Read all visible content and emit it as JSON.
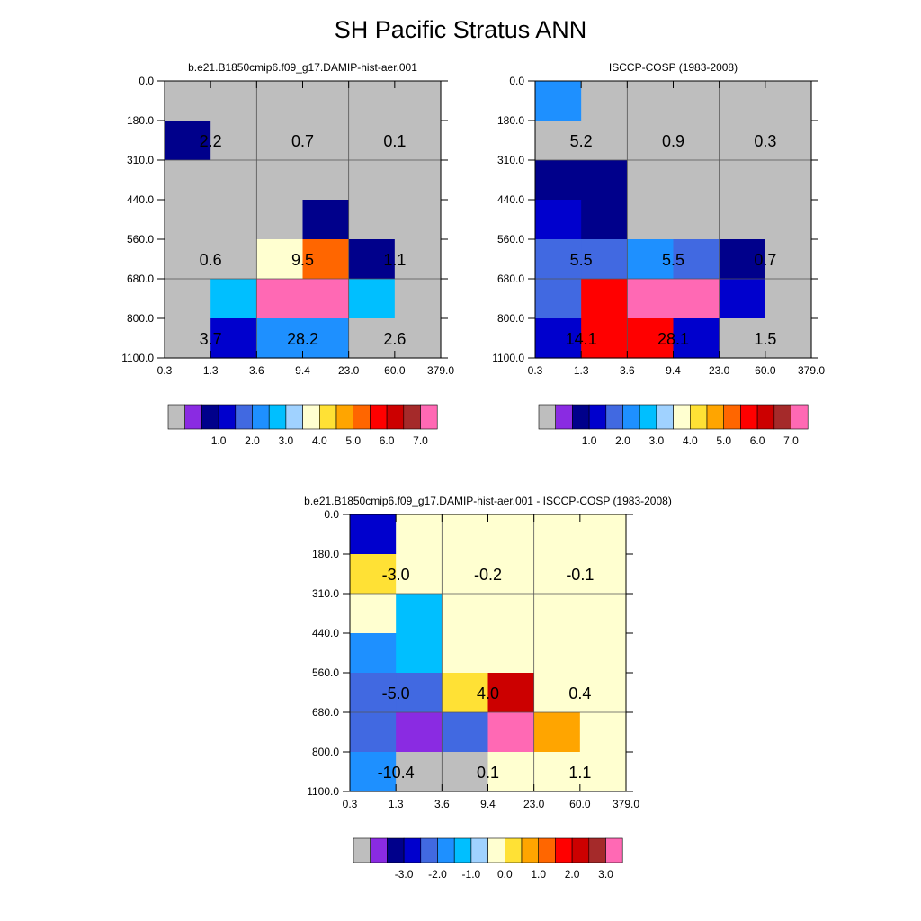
{
  "title": "SH Pacific Stratus ANN",
  "chart_data": [
    {
      "type": "heatmap",
      "title": "b.e21.B1850cmip6.f09_g17.DAMIP-hist-aer.001",
      "x_ticks": [
        "0.3",
        "1.3",
        "3.6",
        "9.4",
        "23.0",
        "60.0",
        "379.0"
      ],
      "y_ticks": [
        "0.0",
        "180.0",
        "310.0",
        "440.0",
        "560.0",
        "680.0",
        "800.0",
        "1100.0"
      ],
      "grid": true,
      "cell_values": [
        [
          0.0,
          0.0,
          0.0,
          0.0,
          0.0,
          0.0
        ],
        [
          0.5,
          0.0,
          0.0,
          0.0,
          0.0,
          0.0
        ],
        [
          0.0,
          0.0,
          0.0,
          0.0,
          0.0,
          0.0
        ],
        [
          0.0,
          0.0,
          0.0,
          0.8,
          0.0,
          0.0
        ],
        [
          0.0,
          0.0,
          3.7,
          5.2,
          0.9,
          0.0
        ],
        [
          0.0,
          2.6,
          7.8,
          7.8,
          2.6,
          0.0
        ],
        [
          0.0,
          1.3,
          2.0,
          2.0,
          0.0,
          0.0
        ]
      ],
      "annotations": [
        {
          "row": 1,
          "col": 0,
          "text": "2.2"
        },
        {
          "row": 1,
          "col": 2,
          "text": "0.7"
        },
        {
          "row": 1,
          "col": 4,
          "text": "0.1"
        },
        {
          "row": 4,
          "col": 0,
          "text": "0.6"
        },
        {
          "row": 4,
          "col": 2,
          "text": "9.5"
        },
        {
          "row": 4,
          "col": 4,
          "text": "1.1"
        },
        {
          "row": 6,
          "col": 0,
          "text": "3.7"
        },
        {
          "row": 6,
          "col": 2,
          "text": "28.2"
        },
        {
          "row": 6,
          "col": 4,
          "text": "2.6"
        }
      ],
      "colorbar": {
        "colors": [
          "#bebebe",
          "#8a2be2",
          "#00008b",
          "#0000cd",
          "#4169e1",
          "#1e90ff",
          "#00bfff",
          "#a0d2ff",
          "#ffffd0",
          "#ffe135",
          "#ffa500",
          "#ff6600",
          "#ff0000",
          "#cc0000",
          "#a52a2a",
          "#ff69b4"
        ],
        "levels": [
          0.2,
          0.5,
          1.0,
          1.5,
          2.0,
          2.5,
          3.0,
          3.5,
          4.0,
          4.5,
          5.0,
          5.5,
          6.0,
          6.5,
          7.0
        ],
        "tick_labels": [
          "1.0",
          "2.0",
          "3.0",
          "4.0",
          "5.0",
          "6.0",
          "7.0"
        ]
      }
    },
    {
      "type": "heatmap",
      "title": "ISCCP-COSP (1983-2008)",
      "x_ticks": [
        "0.3",
        "1.3",
        "3.6",
        "9.4",
        "23.0",
        "60.0",
        "379.0"
      ],
      "y_ticks": [
        "0.0",
        "180.0",
        "310.0",
        "440.0",
        "560.0",
        "680.0",
        "800.0",
        "1100.0"
      ],
      "grid": true,
      "cell_values": [
        [
          2.2,
          0.0,
          0.0,
          0.0,
          0.0,
          0.0
        ],
        [
          0.0,
          0.0,
          0.0,
          0.0,
          0.0,
          0.0
        ],
        [
          0.5,
          0.5,
          0.0,
          0.0,
          0.0,
          0.0
        ],
        [
          1.3,
          0.5,
          0.0,
          0.0,
          0.0,
          0.0
        ],
        [
          1.7,
          1.7,
          2.2,
          1.8,
          0.6,
          0.0
        ],
        [
          1.7,
          5.8,
          7.8,
          7.8,
          1.3,
          0.0
        ],
        [
          1.3,
          5.8,
          5.8,
          1.3,
          0.0,
          0.0
        ]
      ],
      "annotations": [
        {
          "row": 1,
          "col": 0,
          "text": "5.2"
        },
        {
          "row": 1,
          "col": 2,
          "text": "0.9"
        },
        {
          "row": 1,
          "col": 4,
          "text": "0.3"
        },
        {
          "row": 4,
          "col": 0,
          "text": "5.5"
        },
        {
          "row": 4,
          "col": 2,
          "text": "5.5"
        },
        {
          "row": 4,
          "col": 4,
          "text": "0.7"
        },
        {
          "row": 6,
          "col": 0,
          "text": "14.1"
        },
        {
          "row": 6,
          "col": 2,
          "text": "28.1"
        },
        {
          "row": 6,
          "col": 4,
          "text": "1.5"
        }
      ],
      "colorbar": {
        "colors": [
          "#bebebe",
          "#8a2be2",
          "#00008b",
          "#0000cd",
          "#4169e1",
          "#1e90ff",
          "#00bfff",
          "#a0d2ff",
          "#ffffd0",
          "#ffe135",
          "#ffa500",
          "#ff6600",
          "#ff0000",
          "#cc0000",
          "#a52a2a",
          "#ff69b4"
        ],
        "levels": [
          0.2,
          0.5,
          1.0,
          1.5,
          2.0,
          2.5,
          3.0,
          3.5,
          4.0,
          4.5,
          5.0,
          5.5,
          6.0,
          6.5,
          7.0
        ],
        "tick_labels": [
          "1.0",
          "2.0",
          "3.0",
          "4.0",
          "5.0",
          "6.0",
          "7.0"
        ]
      }
    },
    {
      "type": "heatmap",
      "title": "b.e21.B1850cmip6.f09_g17.DAMIP-hist-aer.001 - ISCCP-COSP (1983-2008)",
      "x_ticks": [
        "0.3",
        "1.3",
        "3.6",
        "9.4",
        "23.0",
        "60.0",
        "379.0"
      ],
      "y_ticks": [
        "0.0",
        "180.0",
        "310.0",
        "440.0",
        "560.0",
        "680.0",
        "800.0",
        "1100.0"
      ],
      "grid": true,
      "cell_values": [
        [
          -2.2,
          0.0,
          0.0,
          0.0,
          0.0,
          0.0
        ],
        [
          0.6,
          0.0,
          0.0,
          0.0,
          0.0,
          0.0
        ],
        [
          0.0,
          -0.8,
          0.0,
          0.3,
          0.3,
          0.0
        ],
        [
          -1.2,
          -0.8,
          0.3,
          0.3,
          0.3,
          0.0
        ],
        [
          -1.7,
          -1.7,
          0.8,
          2.8,
          0.3,
          0.0
        ],
        [
          -1.7,
          -3.2,
          -1.7,
          3.5,
          1.2,
          0.0
        ],
        [
          -1.2,
          -3.6,
          -3.6,
          0.3,
          0.3,
          0.0
        ]
      ],
      "annotations": [
        {
          "row": 1,
          "col": 0,
          "text": "-3.0"
        },
        {
          "row": 1,
          "col": 2,
          "text": "-0.2"
        },
        {
          "row": 1,
          "col": 4,
          "text": "-0.1"
        },
        {
          "row": 4,
          "col": 0,
          "text": "-5.0"
        },
        {
          "row": 4,
          "col": 2,
          "text": "4.0"
        },
        {
          "row": 4,
          "col": 4,
          "text": "0.4"
        },
        {
          "row": 6,
          "col": 0,
          "text": "-10.4"
        },
        {
          "row": 6,
          "col": 2,
          "text": "0.1"
        },
        {
          "row": 6,
          "col": 4,
          "text": "1.1"
        }
      ],
      "colorbar": {
        "colors": [
          "#bebebe",
          "#8a2be2",
          "#00008b",
          "#0000cd",
          "#4169e1",
          "#1e90ff",
          "#00bfff",
          "#a0d2ff",
          "#ffffd0",
          "#ffe135",
          "#ffa500",
          "#ff6600",
          "#ff0000",
          "#cc0000",
          "#a52a2a",
          "#ff69b4"
        ],
        "levels": [
          -3.5,
          -3.0,
          -2.5,
          -2.0,
          -1.5,
          -1.0,
          -0.5,
          0.0,
          0.5,
          1.0,
          1.5,
          2.0,
          2.5,
          3.0,
          3.5
        ],
        "tick_labels": [
          "-3.0",
          "-2.0",
          "-1.0",
          "0.0",
          "1.0",
          "2.0",
          "3.0"
        ]
      }
    }
  ]
}
